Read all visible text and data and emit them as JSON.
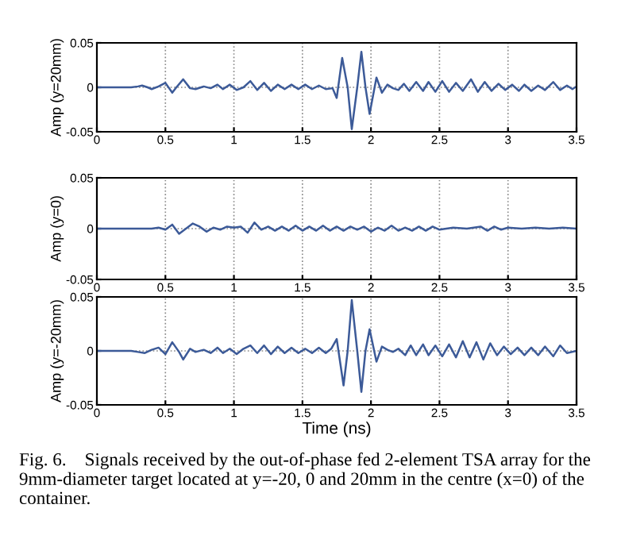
{
  "chart_data": [
    {
      "type": "line",
      "ylabel": "Amp (y=20mm)",
      "xlim": [
        0,
        3.5
      ],
      "ylim": [
        -0.05,
        0.05
      ],
      "xticks": [
        0,
        0.5,
        1,
        1.5,
        2,
        2.5,
        3,
        3.5
      ],
      "yticks": [
        -0.05,
        0,
        0.05
      ],
      "grid": true,
      "series": [
        {
          "color": "#3c5a98",
          "x": [
            0,
            0.25,
            0.3,
            0.33,
            0.37,
            0.4,
            0.45,
            0.5,
            0.55,
            0.58,
            0.63,
            0.68,
            0.72,
            0.78,
            0.83,
            0.88,
            0.92,
            0.97,
            1.02,
            1.07,
            1.12,
            1.17,
            1.22,
            1.27,
            1.32,
            1.37,
            1.42,
            1.47,
            1.52,
            1.57,
            1.62,
            1.67,
            1.72,
            1.75,
            1.79,
            1.83,
            1.86,
            1.9,
            1.93,
            1.96,
            1.99,
            2.04,
            2.08,
            2.12,
            2.16,
            2.2,
            2.24,
            2.28,
            2.33,
            2.38,
            2.42,
            2.47,
            2.52,
            2.57,
            2.62,
            2.67,
            2.73,
            2.78,
            2.83,
            2.88,
            2.93,
            2.98,
            3.03,
            3.08,
            3.12,
            3.17,
            3.22,
            3.27,
            3.33,
            3.38,
            3.43,
            3.47,
            3.5
          ],
          "values": [
            0,
            0,
            0.001,
            0.002,
            0,
            -0.002,
            0.001,
            0.005,
            -0.006,
            0,
            0.009,
            -0.001,
            -0.002,
            0.001,
            -0.001,
            0.003,
            -0.002,
            0.003,
            -0.003,
            0,
            0.007,
            -0.003,
            0.005,
            -0.004,
            0.003,
            -0.002,
            0.003,
            -0.002,
            0.003,
            -0.002,
            0.002,
            -0.002,
            -0.001,
            -0.012,
            0.033,
            0,
            -0.047,
            0,
            0.04,
            0,
            -0.03,
            0.011,
            -0.006,
            0.003,
            -0.001,
            -0.003,
            0.004,
            -0.004,
            0.006,
            -0.004,
            0.006,
            -0.005,
            0.007,
            -0.005,
            0.005,
            -0.004,
            0.009,
            -0.005,
            0.006,
            -0.004,
            0.004,
            -0.003,
            0.003,
            -0.004,
            0.003,
            -0.004,
            0.002,
            -0.003,
            0.006,
            -0.003,
            0.002,
            -0.002,
            0.001
          ]
        }
      ]
    },
    {
      "type": "line",
      "ylabel": "Amp (y=0)",
      "xlim": [
        0,
        3.5
      ],
      "ylim": [
        -0.05,
        0.05
      ],
      "xticks": [
        0,
        0.5,
        1,
        1.5,
        2,
        2.5,
        3,
        3.5
      ],
      "yticks": [
        -0.05,
        0,
        0.05
      ],
      "grid": true,
      "series": [
        {
          "color": "#3c5a98",
          "x": [
            0,
            0.4,
            0.45,
            0.5,
            0.55,
            0.6,
            0.65,
            0.7,
            0.75,
            0.8,
            0.85,
            0.9,
            0.95,
            1.0,
            1.05,
            1.1,
            1.15,
            1.2,
            1.25,
            1.3,
            1.35,
            1.4,
            1.45,
            1.5,
            1.55,
            1.6,
            1.65,
            1.7,
            1.75,
            1.8,
            1.85,
            1.9,
            1.95,
            2.0,
            2.05,
            2.1,
            2.15,
            2.2,
            2.25,
            2.3,
            2.35,
            2.4,
            2.45,
            2.5,
            2.6,
            2.7,
            2.8,
            2.85,
            2.9,
            2.95,
            3.0,
            3.1,
            3.2,
            3.3,
            3.4,
            3.5
          ],
          "values": [
            0,
            0,
            0.001,
            -0.001,
            0.004,
            -0.005,
            0,
            0.005,
            0.002,
            -0.003,
            0.001,
            -0.001,
            0.002,
            0.001,
            0.002,
            -0.004,
            0.006,
            -0.001,
            0.002,
            -0.002,
            0.002,
            -0.002,
            0.003,
            -0.002,
            0.002,
            -0.002,
            0.003,
            -0.002,
            0.002,
            -0.002,
            0.002,
            -0.001,
            0.002,
            -0.003,
            0.001,
            -0.002,
            0.003,
            -0.002,
            0.001,
            -0.002,
            0.002,
            -0.002,
            0.002,
            -0.001,
            0.001,
            0,
            0.002,
            -0.002,
            0.002,
            -0.001,
            0.001,
            0,
            0.001,
            0,
            0.001,
            0
          ]
        }
      ]
    },
    {
      "type": "line",
      "ylabel": "Amp (y=-20mm)",
      "xlabel": "Time (ns)",
      "xlim": [
        0,
        3.5
      ],
      "ylim": [
        -0.05,
        0.05
      ],
      "xticks": [
        0,
        0.5,
        1,
        1.5,
        2,
        2.5,
        3,
        3.5
      ],
      "yticks": [
        -0.05,
        0,
        0.05
      ],
      "grid": true,
      "annotations": [
        "Fig. 6.    Signals received by the out-of-phase fed 2-element TSA array for the 9mm-diameter target located at y=-20, 0 and 20mm in the centre (x=0) of the container."
      ],
      "series": [
        {
          "color": "#3c5a98",
          "x": [
            0,
            0.25,
            0.3,
            0.35,
            0.4,
            0.45,
            0.5,
            0.55,
            0.6,
            0.63,
            0.68,
            0.72,
            0.78,
            0.83,
            0.88,
            0.92,
            0.97,
            1.02,
            1.07,
            1.12,
            1.17,
            1.22,
            1.27,
            1.32,
            1.37,
            1.42,
            1.47,
            1.52,
            1.57,
            1.62,
            1.67,
            1.71,
            1.75,
            1.8,
            1.83,
            1.86,
            1.9,
            1.93,
            1.96,
            1.99,
            2.04,
            2.08,
            2.12,
            2.16,
            2.2,
            2.25,
            2.29,
            2.33,
            2.38,
            2.42,
            2.47,
            2.52,
            2.57,
            2.62,
            2.67,
            2.72,
            2.77,
            2.82,
            2.87,
            2.92,
            2.97,
            3.02,
            3.07,
            3.12,
            3.17,
            3.22,
            3.27,
            3.33,
            3.38,
            3.43,
            3.5
          ],
          "values": [
            0,
            0,
            -0.001,
            -0.002,
            0.001,
            0.003,
            -0.003,
            0.008,
            -0.001,
            -0.008,
            0.002,
            -0.001,
            0.001,
            -0.002,
            0.003,
            -0.002,
            0.002,
            -0.003,
            0.002,
            0.005,
            -0.002,
            0.005,
            -0.003,
            0.004,
            -0.002,
            0.003,
            -0.002,
            0.002,
            -0.002,
            0.003,
            -0.002,
            0.002,
            0.011,
            -0.032,
            0,
            0.047,
            0,
            -0.038,
            0,
            0.02,
            -0.01,
            0.004,
            0.001,
            -0.001,
            0.002,
            -0.004,
            0.005,
            -0.004,
            0.006,
            -0.004,
            0.005,
            -0.005,
            0.006,
            -0.006,
            0.009,
            -0.006,
            0.008,
            -0.008,
            0.007,
            -0.004,
            0.004,
            -0.003,
            0.003,
            -0.004,
            0.003,
            -0.004,
            0.004,
            -0.005,
            0.005,
            -0.002,
            0
          ]
        }
      ]
    }
  ]
}
